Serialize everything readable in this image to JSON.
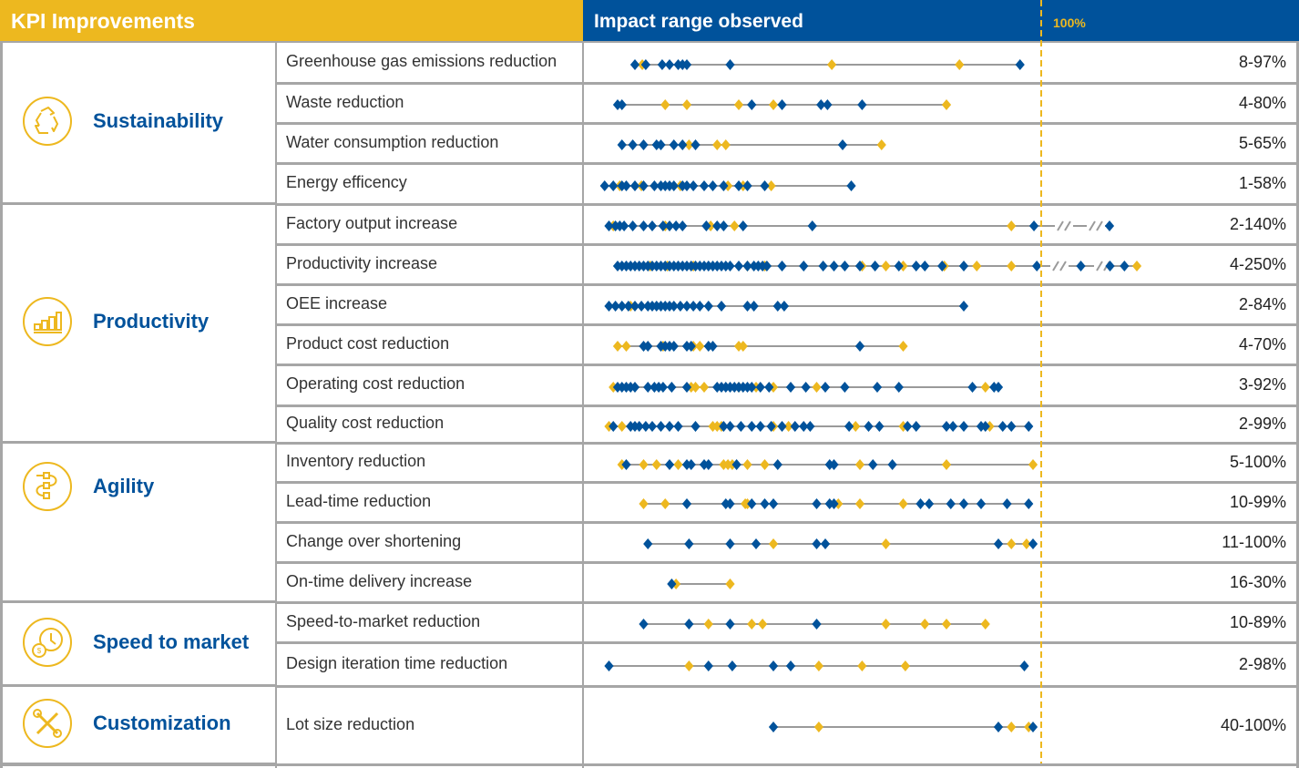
{
  "header": {
    "left_title": "KPI Improvements",
    "right_title": "Impact range observed",
    "reference_label": "100%"
  },
  "colors": {
    "gold": "#EDB81F",
    "blue": "#00529B",
    "grid": "#A6A6A6",
    "line": "#9A9A9A"
  },
  "categories": [
    {
      "label": "Sustainability",
      "icon": "recycle-icon"
    },
    {
      "label": "Productivity",
      "icon": "bar-chart-icon"
    },
    {
      "label": "Agility",
      "icon": "process-flow-icon"
    },
    {
      "label": "Speed to market",
      "icon": "clock-coin-icon"
    },
    {
      "label": "Customization",
      "icon": "tools-icon"
    }
  ],
  "chart_data": {
    "type": "scatter",
    "title": "Impact range observed",
    "xlabel": "",
    "ylabel": "",
    "xlim": [
      0,
      100
    ],
    "axis_break": "after 100% (break marks shown)",
    "reference_line": {
      "value": 100,
      "label": "100%",
      "style": "dashed",
      "color": "#EDB81F"
    },
    "legend": [],
    "series_colors": {
      "blue": "#00529B",
      "gold": "#EDB81F"
    },
    "rows": [
      {
        "category": "Sustainability",
        "kpi": "Greenhouse gas emissions reduction",
        "range": "8-97%",
        "blue": [
          8,
          10.5,
          14.3,
          16,
          18,
          19,
          20,
          30,
          97
        ],
        "gold": [
          9.7,
          53.5,
          83
        ]
      },
      {
        "category": "Sustainability",
        "kpi": "Waste reduction",
        "range": "4-80%",
        "blue": [
          4,
          5,
          35,
          42,
          51,
          52.5,
          60.5
        ],
        "gold": [
          15,
          20,
          32,
          40,
          80
        ]
      },
      {
        "category": "Sustainability",
        "kpi": "Water consumption reduction",
        "range": "5-65%",
        "blue": [
          5,
          7.5,
          10,
          13,
          14,
          17,
          19,
          22,
          56
        ],
        "gold": [
          20.5,
          27,
          29,
          65
        ]
      },
      {
        "category": "Sustainability",
        "kpi": "Energy efficency",
        "range": "1-58%",
        "blue": [
          1,
          3,
          5,
          6,
          8,
          10,
          12.5,
          14,
          15,
          16,
          17,
          19,
          20,
          21.5,
          24,
          26,
          28.5,
          32,
          34,
          38,
          58
        ],
        "gold": [
          4.5,
          9.5,
          18.5,
          29.5,
          33,
          39.5
        ]
      },
      {
        "category": "Productivity",
        "kpi": "Factory output increase",
        "range": "2-140%",
        "blue": [
          2,
          3.5,
          4.5,
          5.5,
          7.5,
          10,
          12,
          14.5,
          16,
          17.5,
          19,
          24.5,
          27,
          28.5,
          33,
          49,
          100.5,
          140
        ],
        "gold": [
          3,
          15,
          25.5,
          31,
          95
        ]
      },
      {
        "category": "Productivity",
        "kpi": "Productivity increase",
        "range": "4-250%",
        "blue": [
          4,
          5,
          6,
          7,
          8,
          9,
          10,
          11,
          12,
          13,
          14,
          15,
          16,
          17,
          18,
          19,
          20,
          21,
          22,
          23,
          24,
          25,
          26,
          27,
          28,
          29,
          30,
          32,
          34,
          35.5,
          36.5,
          37.5,
          38.5,
          42,
          47,
          51.5,
          54,
          56.5,
          60,
          63.5,
          69,
          73,
          75,
          79,
          84,
          102,
          125,
          142,
          200
        ],
        "gold": [
          11.5,
          15.5,
          21.5,
          34,
          38,
          60.5,
          66,
          70,
          79.5,
          87,
          95,
          250
        ]
      },
      {
        "category": "Productivity",
        "kpi": "OEE increase",
        "range": "2-84%",
        "blue": [
          2,
          3.5,
          5,
          6.5,
          8,
          9.5,
          11,
          12,
          13,
          14,
          15,
          16,
          17,
          18.5,
          20,
          21.5,
          23,
          25,
          28,
          34,
          35.5,
          41,
          42.5,
          84
        ],
        "gold": [
          7
        ]
      },
      {
        "category": "Productivity",
        "kpi": "Product cost reduction",
        "range": "4-70%",
        "blue": [
          10,
          11,
          14,
          15,
          16,
          17,
          20,
          21,
          25,
          26,
          60
        ],
        "gold": [
          4,
          6,
          14.5,
          21.5,
          23,
          32,
          33,
          70
        ]
      },
      {
        "category": "Productivity",
        "kpi": "Operating cost reduction",
        "range": "3-92%",
        "blue": [
          4,
          5,
          6,
          7,
          8,
          11,
          12.5,
          13.5,
          14.5,
          16.5,
          20,
          27,
          28,
          29,
          30,
          31,
          32,
          33,
          34,
          35,
          37,
          39,
          44,
          47.5,
          52,
          56.5,
          64,
          69,
          86,
          91,
          92
        ],
        "gold": [
          3,
          21,
          22,
          24,
          32,
          36,
          40,
          50,
          89
        ]
      },
      {
        "category": "Productivity",
        "kpi": "Quality cost reduction",
        "range": "2-99%",
        "blue": [
          3,
          7,
          8,
          9,
          10.5,
          12,
          14,
          16,
          18,
          22,
          28.5,
          30,
          32.5,
          35,
          37,
          39.5,
          42,
          45,
          47,
          48.5,
          57.5,
          62,
          64.5,
          71,
          73,
          80,
          81.5,
          84,
          88,
          89,
          93,
          95,
          99
        ],
        "gold": [
          2,
          5,
          26,
          27,
          28,
          40,
          43.5,
          59,
          70,
          90
        ]
      },
      {
        "category": "Agility",
        "kpi": "Inventory reduction",
        "range": "5-100%",
        "blue": [
          6,
          16,
          20,
          21,
          24,
          25,
          31.5,
          41,
          53,
          54,
          63,
          67.5
        ],
        "gold": [
          5,
          10,
          13,
          18,
          28.5,
          29.5,
          30.5,
          34,
          38,
          60,
          80,
          100
        ]
      },
      {
        "category": "Agility",
        "kpi": "Lead-time reduction",
        "range": "10-99%",
        "blue": [
          20,
          29,
          30,
          35,
          38,
          40,
          50,
          53,
          54,
          74,
          76,
          81,
          84,
          88,
          94,
          99
        ],
        "gold": [
          10,
          15,
          33.5,
          34,
          55,
          60,
          70
        ]
      },
      {
        "category": "Agility",
        "kpi": "Change over shortening",
        "range": "11-100%",
        "blue": [
          11,
          20.5,
          30,
          36,
          50,
          52,
          92,
          100
        ],
        "gold": [
          40,
          66,
          95,
          98.5
        ]
      },
      {
        "category": "Agility",
        "kpi": "On-time delivery increase",
        "range": "16-30%",
        "blue": [
          16.5
        ],
        "gold": [
          17.5,
          30
        ]
      },
      {
        "category": "Speed to market",
        "kpi": "Speed-to-market reduction",
        "range": "10-89%",
        "blue": [
          10,
          20.5,
          30,
          50
        ],
        "gold": [
          25,
          35,
          37.5,
          66,
          75,
          80,
          89
        ]
      },
      {
        "category": "Speed to market",
        "kpi": "Design iteration time reduction",
        "range": "2-98%",
        "blue": [
          2,
          25,
          30.5,
          40,
          44,
          98
        ],
        "gold": [
          20.5,
          50.5,
          60.5,
          70.5
        ]
      },
      {
        "category": "Customization",
        "kpi": "Lot size reduction",
        "range": "40-100%",
        "blue": [
          40,
          92,
          100
        ],
        "gold": [
          50.5,
          95,
          99
        ]
      }
    ]
  }
}
